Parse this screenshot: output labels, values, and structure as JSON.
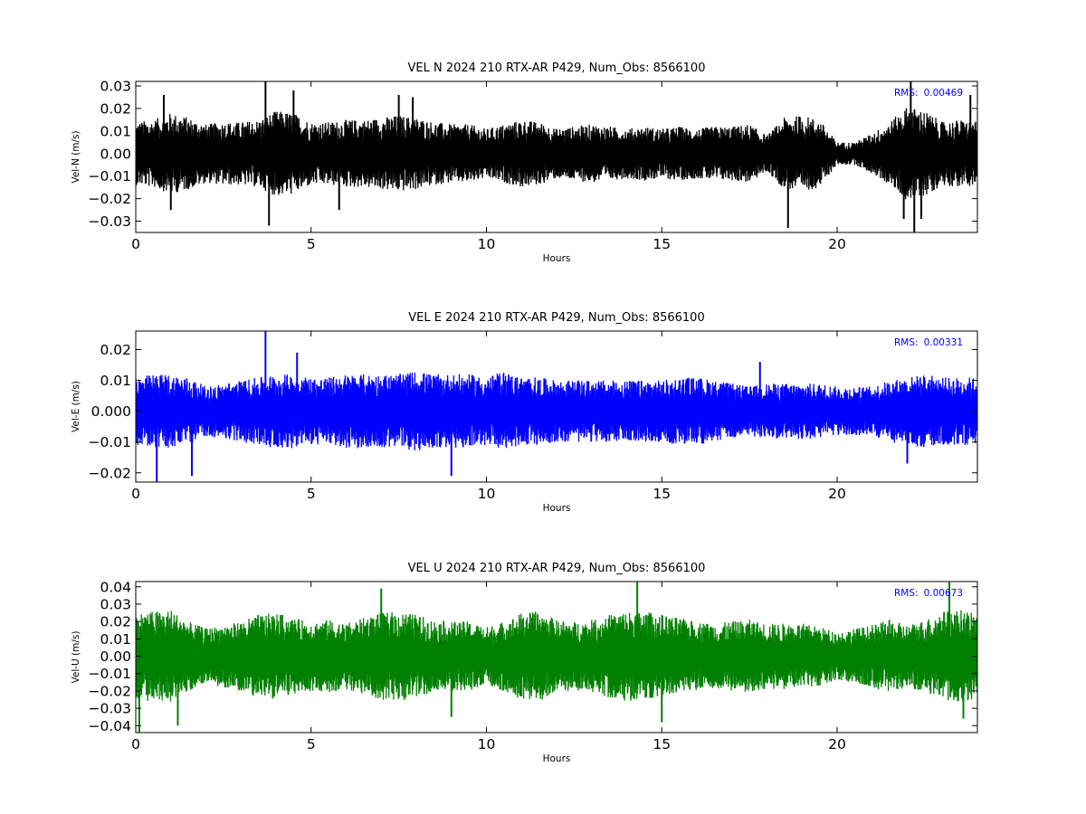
{
  "chart_data": [
    {
      "type": "line",
      "title": "VEL N 2024 210 RTX-AR  P429, Num_Obs: 8566100",
      "xlabel": "Hours",
      "ylabel": "Vel-N (m/s)",
      "xlim": [
        0,
        24
      ],
      "ylim": [
        -0.035,
        0.032
      ],
      "xticks": [
        0,
        5,
        10,
        15,
        20
      ],
      "yticks": [
        -0.03,
        -0.02,
        -0.01,
        0.0,
        0.01,
        0.02,
        0.03
      ],
      "ytick_labels": [
        "−0.03",
        "−0.02",
        "−0.01",
        "0.00",
        "0.01",
        "0.02",
        "0.03"
      ],
      "grid": false,
      "series": [
        {
          "color": "#000000",
          "envelope_x": [
            0,
            0.5,
            1,
            1.5,
            2,
            2.5,
            3,
            3.5,
            4,
            4.5,
            5,
            5.5,
            6,
            6.5,
            7,
            7.5,
            8,
            8.5,
            9,
            9.5,
            10,
            10.5,
            11,
            11.5,
            12,
            12.5,
            13,
            13.5,
            14,
            14.5,
            15,
            15.5,
            16,
            16.5,
            17,
            17.5,
            18,
            18.5,
            19,
            19.5,
            20,
            20.5,
            21,
            21.5,
            22,
            22.5,
            23,
            23.5,
            24
          ],
          "envelope_amplitude": [
            0.014,
            0.015,
            0.018,
            0.016,
            0.013,
            0.014,
            0.014,
            0.015,
            0.019,
            0.018,
            0.014,
            0.014,
            0.015,
            0.015,
            0.016,
            0.017,
            0.016,
            0.014,
            0.013,
            0.013,
            0.011,
            0.013,
            0.015,
            0.014,
            0.011,
            0.012,
            0.013,
            0.012,
            0.011,
            0.012,
            0.011,
            0.012,
            0.011,
            0.012,
            0.012,
            0.013,
            0.008,
            0.016,
            0.017,
            0.015,
            0.005,
            0.005,
            0.009,
            0.014,
            0.021,
            0.019,
            0.014,
            0.015,
            0.014
          ],
          "spikes": [
            [
              0.8,
              0.026
            ],
            [
              1.0,
              -0.025
            ],
            [
              3.7,
              0.032
            ],
            [
              3.8,
              -0.032
            ],
            [
              4.5,
              0.028
            ],
            [
              5.8,
              -0.025
            ],
            [
              7.5,
              0.026
            ],
            [
              7.9,
              0.025
            ],
            [
              18.6,
              -0.033
            ],
            [
              21.9,
              -0.029
            ],
            [
              22.1,
              0.032
            ],
            [
              22.2,
              -0.036
            ],
            [
              22.4,
              -0.029
            ],
            [
              23.8,
              0.026
            ]
          ]
        }
      ],
      "annotation": {
        "label": "RMS:",
        "value": "0.00469",
        "color": "#0000ff",
        "position": "top-right"
      }
    },
    {
      "type": "line",
      "title": "VEL E 2024 210 RTX-AR  P429, Num_Obs: 8566100",
      "xlabel": "Hours",
      "ylabel": "Vel-E (m/s)",
      "xlim": [
        0,
        24
      ],
      "ylim": [
        -0.023,
        0.026
      ],
      "xticks": [
        0,
        5,
        10,
        15,
        20
      ],
      "yticks": [
        -0.02,
        -0.01,
        0.0,
        0.01,
        0.02
      ],
      "ytick_labels": [
        "−0.02",
        "−0.01",
        "0.000",
        "0.01",
        "0.02"
      ],
      "grid": false,
      "series": [
        {
          "color": "#0000ff",
          "envelope_x": [
            0,
            0.5,
            1,
            1.5,
            2,
            2.5,
            3,
            3.5,
            4,
            4.5,
            5,
            5.5,
            6,
            6.5,
            7,
            7.5,
            8,
            8.5,
            9,
            9.5,
            10,
            10.5,
            11,
            11.5,
            12,
            12.5,
            13,
            13.5,
            14,
            14.5,
            15,
            15.5,
            16,
            16.5,
            17,
            17.5,
            18,
            18.5,
            19,
            19.5,
            20,
            20.5,
            21,
            21.5,
            22,
            22.5,
            23,
            23.5,
            24
          ],
          "envelope_amplitude": [
            0.011,
            0.012,
            0.012,
            0.011,
            0.008,
            0.009,
            0.01,
            0.011,
            0.012,
            0.012,
            0.011,
            0.011,
            0.012,
            0.012,
            0.012,
            0.012,
            0.013,
            0.012,
            0.012,
            0.012,
            0.011,
            0.013,
            0.011,
            0.011,
            0.01,
            0.01,
            0.01,
            0.01,
            0.01,
            0.01,
            0.01,
            0.011,
            0.011,
            0.01,
            0.009,
            0.008,
            0.009,
            0.009,
            0.009,
            0.009,
            0.008,
            0.008,
            0.008,
            0.01,
            0.011,
            0.012,
            0.011,
            0.011,
            0.011
          ],
          "spikes": [
            [
              0.6,
              -0.023
            ],
            [
              1.6,
              -0.021
            ],
            [
              3.7,
              0.026
            ],
            [
              4.6,
              0.019
            ],
            [
              9.0,
              -0.021
            ],
            [
              17.8,
              0.016
            ],
            [
              22.0,
              -0.017
            ]
          ]
        }
      ],
      "annotation": {
        "label": "RMS:",
        "value": "0.00331",
        "color": "#0000ff",
        "position": "top-right"
      }
    },
    {
      "type": "line",
      "title": "VEL U 2024 210 RTX-AR  P429, Num_Obs: 8566100",
      "xlabel": "Hours",
      "ylabel": "Vel-U (m/s)",
      "xlim": [
        0,
        24
      ],
      "ylim": [
        -0.044,
        0.043
      ],
      "xticks": [
        0,
        5,
        10,
        15,
        20
      ],
      "yticks": [
        -0.04,
        -0.03,
        -0.02,
        -0.01,
        0.0,
        0.01,
        0.02,
        0.03,
        0.04
      ],
      "ytick_labels": [
        "−0.04",
        "−0.03",
        "−0.02",
        "−0.01",
        "0.00",
        "0.01",
        "0.02",
        "0.03",
        "0.04"
      ],
      "grid": false,
      "series": [
        {
          "color": "#008000",
          "envelope_x": [
            0,
            0.5,
            1,
            1.5,
            2,
            2.5,
            3,
            3.5,
            4,
            4.5,
            5,
            5.5,
            6,
            6.5,
            7,
            7.5,
            8,
            8.5,
            9,
            9.5,
            10,
            10.5,
            11,
            11.5,
            12,
            12.5,
            13,
            13.5,
            14,
            14.5,
            15,
            15.5,
            16,
            16.5,
            17,
            17.5,
            18,
            18.5,
            19,
            19.5,
            20,
            20.5,
            21,
            21.5,
            22,
            22.5,
            23,
            23.5,
            24
          ],
          "envelope_amplitude": [
            0.025,
            0.026,
            0.027,
            0.02,
            0.016,
            0.018,
            0.02,
            0.024,
            0.025,
            0.022,
            0.02,
            0.021,
            0.019,
            0.022,
            0.025,
            0.026,
            0.024,
            0.021,
            0.02,
            0.02,
            0.017,
            0.02,
            0.025,
            0.026,
            0.021,
            0.02,
            0.021,
            0.024,
            0.026,
            0.026,
            0.024,
            0.022,
            0.02,
            0.019,
            0.02,
            0.021,
            0.019,
            0.019,
            0.019,
            0.017,
            0.014,
            0.016,
            0.018,
            0.021,
            0.018,
            0.021,
            0.026,
            0.027,
            0.024
          ],
          "spikes": [
            [
              0.1,
              -0.044
            ],
            [
              1.2,
              -0.04
            ],
            [
              7.0,
              0.039
            ],
            [
              9.0,
              -0.035
            ],
            [
              14.3,
              0.043
            ],
            [
              15.0,
              -0.038
            ],
            [
              23.2,
              0.043
            ],
            [
              23.6,
              -0.036
            ]
          ]
        }
      ],
      "annotation": {
        "label": "RMS:",
        "value": "0.00673",
        "color": "#0000ff",
        "position": "top-right"
      }
    }
  ]
}
